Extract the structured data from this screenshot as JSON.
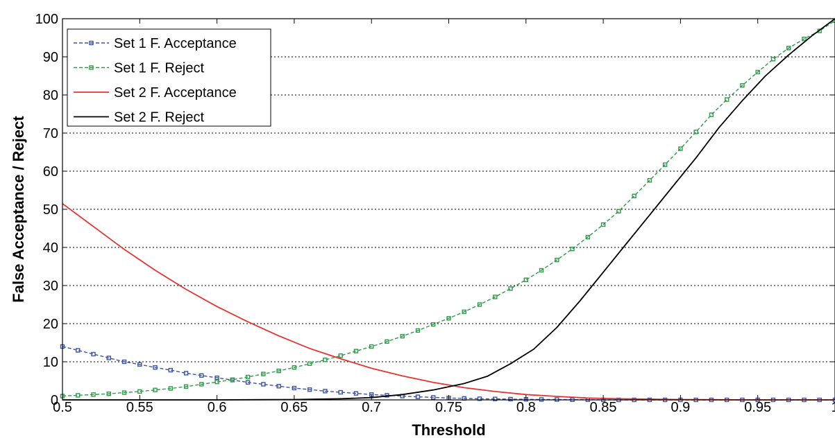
{
  "chart_data": {
    "type": "line",
    "title": "",
    "xlabel": "Threshold",
    "ylabel": "False Acceptance / Reject",
    "xlim": [
      0.5,
      1
    ],
    "ylim": [
      0,
      100
    ],
    "xticks": [
      0.5,
      0.55,
      0.6,
      0.65,
      0.7,
      0.75,
      0.8,
      0.85,
      0.9,
      0.95,
      1
    ],
    "xtick_labels": [
      "0.5",
      "0.55",
      "0.6",
      "0.65",
      "0.7",
      "0.75",
      "0.8",
      "0.85",
      "0.9",
      "0.95",
      "1"
    ],
    "yticks": [
      0,
      10,
      20,
      30,
      40,
      50,
      60,
      70,
      80,
      90,
      100
    ],
    "ytick_labels": [
      "0",
      "10",
      "20",
      "30",
      "40",
      "50",
      "60",
      "70",
      "80",
      "90",
      "100"
    ],
    "grid": "horizontal-dotted",
    "legend_position": "top-left",
    "series": [
      {
        "name": "Set 1 F. Acceptance",
        "color": "#3a53a4",
        "style": "dashed-square-marker",
        "x": [
          0.5,
          0.51,
          0.52,
          0.53,
          0.54,
          0.55,
          0.56,
          0.57,
          0.58,
          0.59,
          0.6,
          0.61,
          0.62,
          0.63,
          0.64,
          0.65,
          0.66,
          0.67,
          0.68,
          0.69,
          0.7,
          0.71,
          0.72,
          0.73,
          0.74,
          0.75,
          0.76,
          0.77,
          0.78,
          0.79,
          0.8,
          0.81,
          0.82,
          0.83,
          0.84,
          0.85,
          0.86,
          0.87,
          0.88,
          0.89,
          0.9,
          0.91,
          0.92,
          0.93,
          0.94,
          0.95,
          0.96,
          0.97,
          0.98,
          0.99,
          1.0
        ],
        "y": [
          14,
          13,
          12,
          11,
          10,
          9.3,
          8.5,
          7.8,
          7.0,
          6.4,
          5.8,
          5.2,
          4.6,
          4.1,
          3.6,
          3.1,
          2.7,
          2.3,
          2.0,
          1.7,
          1.4,
          1.2,
          1.0,
          0.8,
          0.65,
          0.5,
          0.4,
          0.3,
          0.25,
          0.2,
          0.15,
          0.1,
          0.1,
          0.05,
          0.05,
          0,
          0,
          0,
          0,
          0,
          0,
          0,
          0,
          0,
          0,
          0,
          0,
          0,
          0,
          0,
          0
        ]
      },
      {
        "name": "Set 1 F. Reject",
        "color": "#2d9a47",
        "style": "dashed-square-marker",
        "x": [
          0.5,
          0.51,
          0.52,
          0.53,
          0.54,
          0.55,
          0.56,
          0.57,
          0.58,
          0.59,
          0.6,
          0.61,
          0.62,
          0.63,
          0.64,
          0.65,
          0.66,
          0.67,
          0.68,
          0.69,
          0.7,
          0.71,
          0.72,
          0.73,
          0.74,
          0.75,
          0.76,
          0.77,
          0.78,
          0.79,
          0.8,
          0.81,
          0.82,
          0.83,
          0.84,
          0.85,
          0.86,
          0.87,
          0.88,
          0.89,
          0.9,
          0.91,
          0.92,
          0.93,
          0.94,
          0.95,
          0.96,
          0.97,
          0.98,
          0.99,
          1.0
        ],
        "y": [
          1.0,
          1.2,
          1.4,
          1.6,
          1.9,
          2.2,
          2.6,
          3.0,
          3.5,
          4.1,
          4.7,
          5.3,
          6.0,
          6.8,
          7.6,
          8.5,
          9.5,
          10.5,
          11.6,
          12.8,
          14.0,
          15.3,
          16.7,
          18.2,
          19.8,
          21.4,
          23.1,
          25.0,
          27.0,
          29.2,
          31.5,
          34.0,
          36.7,
          39.6,
          42.7,
          46.0,
          49.5,
          53.5,
          57.6,
          61.7,
          65.9,
          70.3,
          74.8,
          78.8,
          82.5,
          86.0,
          89.4,
          92.3,
          94.7,
          96.8,
          99.5
        ]
      },
      {
        "name": "Set 2 F. Acceptance",
        "color": "#e8322e",
        "style": "solid",
        "x": [
          0.5,
          0.52,
          0.54,
          0.56,
          0.58,
          0.6,
          0.62,
          0.64,
          0.66,
          0.68,
          0.7,
          0.72,
          0.74,
          0.76,
          0.78,
          0.8,
          0.82,
          0.84,
          0.86,
          0.88,
          0.9,
          0.92,
          0.94,
          0.96,
          0.98,
          1.0
        ],
        "y": [
          51.5,
          45.5,
          39.5,
          34.0,
          29.0,
          24.5,
          20.5,
          16.8,
          13.5,
          10.8,
          8.3,
          6.3,
          4.6,
          3.2,
          2.2,
          1.4,
          0.9,
          0.5,
          0.3,
          0.2,
          0.1,
          0.05,
          0,
          0,
          0,
          0
        ]
      },
      {
        "name": "Set 2 F. Reject",
        "color": "#000000",
        "style": "solid",
        "x": [
          0.5,
          0.55,
          0.6,
          0.65,
          0.68,
          0.7,
          0.72,
          0.74,
          0.76,
          0.775,
          0.79,
          0.805,
          0.82,
          0.835,
          0.85,
          0.865,
          0.88,
          0.895,
          0.91,
          0.925,
          0.94,
          0.955,
          0.97,
          0.985,
          1.0
        ],
        "y": [
          0,
          0,
          0,
          0.1,
          0.3,
          0.6,
          1.4,
          2.6,
          4.3,
          6.2,
          9.5,
          13.3,
          19.0,
          26.0,
          33.5,
          41.0,
          48.5,
          56.0,
          63.5,
          71.5,
          78.5,
          85.0,
          90.5,
          95.5,
          100
        ]
      }
    ]
  }
}
